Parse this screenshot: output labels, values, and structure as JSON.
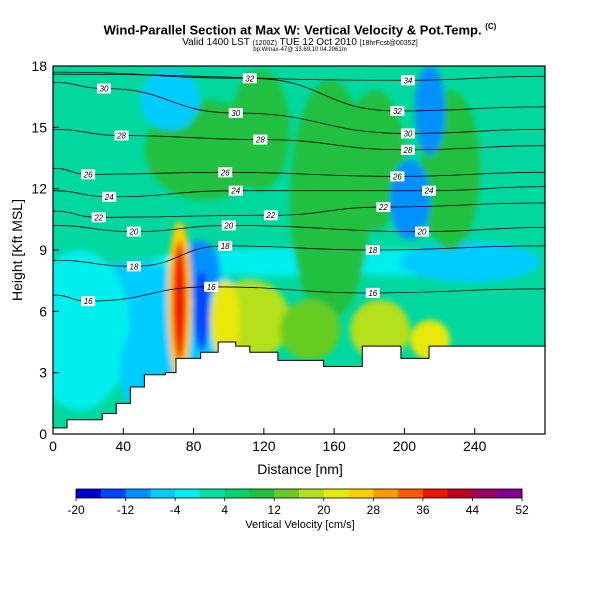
{
  "header": {
    "title": "Wind-Parallel Section at Max W: Vertical Velocity & Pot.Temp.",
    "title_sup": "(C)",
    "subtitle_main": "Valid 1400 LST",
    "subtitle_small1": "(1200Z)",
    "subtitle_mid": "TUE 12 Oct 2010",
    "subtitle_small2": "[18hrFcst@0035Z]",
    "subtitle3": "bp:Wmax-47@ 33.69,10 04.2061m"
  },
  "chart_data": {
    "type": "heatmap",
    "xlabel": "Distance [nm]",
    "ylabel": "Height [Kft MSL]",
    "xlim": [
      0,
      280
    ],
    "ylim": [
      0,
      18
    ],
    "xticks": [
      "0",
      "40",
      "80",
      "120",
      "160",
      "200",
      "240"
    ],
    "xtick_values": [
      0,
      40,
      80,
      120,
      160,
      200,
      240
    ],
    "yticks": [
      "0",
      "3",
      "6",
      "9",
      "12",
      "15",
      "18"
    ],
    "ytick_values": [
      0,
      3,
      6,
      9,
      12,
      15,
      18
    ],
    "terrain": [
      [
        0,
        0.3
      ],
      [
        8,
        0.3
      ],
      [
        8,
        0.7
      ],
      [
        28,
        0.7
      ],
      [
        28,
        1.0
      ],
      [
        36,
        1.0
      ],
      [
        36,
        1.5
      ],
      [
        44,
        1.5
      ],
      [
        44,
        2.3
      ],
      [
        52,
        2.3
      ],
      [
        52,
        2.9
      ],
      [
        64,
        2.9
      ],
      [
        64,
        3.0
      ],
      [
        70,
        3.0
      ],
      [
        70,
        3.7
      ],
      [
        84,
        3.7
      ],
      [
        84,
        4.0
      ],
      [
        94,
        4.0
      ],
      [
        94,
        4.5
      ],
      [
        104,
        4.5
      ],
      [
        104,
        4.3
      ],
      [
        112,
        4.3
      ],
      [
        112,
        4.0
      ],
      [
        128,
        4.0
      ],
      [
        128,
        3.6
      ],
      [
        154,
        3.6
      ],
      [
        154,
        3.3
      ],
      [
        176,
        3.3
      ],
      [
        176,
        4.3
      ],
      [
        198,
        4.3
      ],
      [
        198,
        3.7
      ],
      [
        214,
        3.7
      ],
      [
        214,
        4.3
      ],
      [
        232,
        4.3
      ],
      [
        232,
        4.3
      ],
      [
        280,
        4.3
      ]
    ],
    "contour_lines": [
      {
        "level": 16,
        "labels": [
          {
            "x": 20,
            "y": 6.5
          },
          {
            "x": 90,
            "y": 7.2
          },
          {
            "x": 182,
            "y": 6.9
          }
        ]
      },
      {
        "level": 18,
        "labels": [
          {
            "x": 46,
            "y": 8.2
          },
          {
            "x": 98,
            "y": 9.2
          },
          {
            "x": 182,
            "y": 9.0
          }
        ]
      },
      {
        "level": 20,
        "labels": [
          {
            "x": 46,
            "y": 9.9
          },
          {
            "x": 100,
            "y": 10.2
          },
          {
            "x": 210,
            "y": 9.9
          }
        ]
      },
      {
        "level": 22,
        "labels": [
          {
            "x": 26,
            "y": 10.6
          },
          {
            "x": 124,
            "y": 10.7
          },
          {
            "x": 188,
            "y": 11.1
          }
        ]
      },
      {
        "level": 24,
        "labels": [
          {
            "x": 32,
            "y": 11.6
          },
          {
            "x": 104,
            "y": 11.9
          },
          {
            "x": 214,
            "y": 11.9
          }
        ]
      },
      {
        "level": 26,
        "labels": [
          {
            "x": 20,
            "y": 12.7
          },
          {
            "x": 98,
            "y": 12.8
          },
          {
            "x": 196,
            "y": 12.6
          }
        ]
      },
      {
        "level": 28,
        "labels": [
          {
            "x": 39,
            "y": 14.6
          },
          {
            "x": 118,
            "y": 14.4
          },
          {
            "x": 202,
            "y": 13.9
          }
        ]
      },
      {
        "level": 30,
        "labels": [
          {
            "x": 29,
            "y": 16.9
          },
          {
            "x": 104,
            "y": 15.7
          },
          {
            "x": 202,
            "y": 14.7
          }
        ]
      },
      {
        "level": 32,
        "labels": [
          {
            "x": 112,
            "y": 17.4
          },
          {
            "x": 196,
            "y": 15.8
          }
        ]
      },
      {
        "level": 34,
        "labels": [
          {
            "x": 202,
            "y": 17.3
          }
        ]
      }
    ],
    "colorbar": {
      "label": "Vertical Velocity [cm/s]",
      "ticks": [
        "-20",
        "-12",
        "-4",
        "4",
        "12",
        "20",
        "28",
        "36",
        "44",
        "52"
      ],
      "colors": [
        "#0000cc",
        "#0044ff",
        "#0090ff",
        "#00ccff",
        "#00eeee",
        "#00e0a0",
        "#00d46a",
        "#20c040",
        "#66cc22",
        "#b4e01e",
        "#e8e810",
        "#ffd000",
        "#ff9a00",
        "#ff5a00",
        "#ee1500",
        "#c00020",
        "#a00060",
        "#800090"
      ]
    },
    "updraft_max_cm_s": 52,
    "updraft_location": {
      "x": 72,
      "y": 6.5
    }
  }
}
